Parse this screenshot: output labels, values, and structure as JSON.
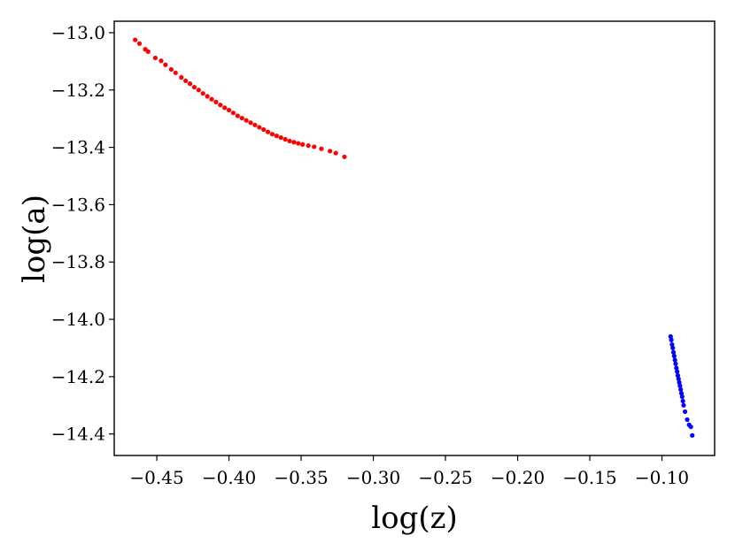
{
  "chart_data": {
    "type": "scatter",
    "title": "",
    "xlabel": "log(z)",
    "ylabel": "log(a)",
    "xlim": [
      -0.4795,
      -0.0635
    ],
    "ylim": [
      -14.475,
      -12.96
    ],
    "grid": false,
    "legend": "none",
    "xticks": [
      -0.45,
      -0.4,
      -0.35,
      -0.3,
      -0.25,
      -0.2,
      -0.15,
      -0.1
    ],
    "xtick_labels": [
      "−0.45",
      "−0.40",
      "−0.35",
      "−0.30",
      "−0.25",
      "−0.20",
      "−0.15",
      "−0.10"
    ],
    "yticks": [
      -13.0,
      -13.2,
      -13.4,
      -13.6,
      -13.8,
      -14.0,
      -14.2,
      -14.4
    ],
    "ytick_labels": [
      "−13.0",
      "−13.2",
      "−13.4",
      "−13.6",
      "−13.8",
      "−14.0",
      "−14.2",
      "−14.4"
    ],
    "series": [
      {
        "color": "#ff0000",
        "points": [
          [
            -0.465,
            -13.025
          ],
          [
            -0.462,
            -13.038
          ],
          [
            -0.458,
            -13.058
          ],
          [
            -0.456,
            -13.066
          ],
          [
            -0.451,
            -13.088
          ],
          [
            -0.447,
            -13.098
          ],
          [
            -0.444,
            -13.112
          ],
          [
            -0.44,
            -13.128
          ],
          [
            -0.437,
            -13.14
          ],
          [
            -0.433,
            -13.156
          ],
          [
            -0.43,
            -13.168
          ],
          [
            -0.427,
            -13.178
          ],
          [
            -0.424,
            -13.19
          ],
          [
            -0.421,
            -13.2
          ],
          [
            -0.418,
            -13.212
          ],
          [
            -0.415,
            -13.222
          ],
          [
            -0.412,
            -13.232
          ],
          [
            -0.409,
            -13.242
          ],
          [
            -0.406,
            -13.252
          ],
          [
            -0.403,
            -13.262
          ],
          [
            -0.4,
            -13.27
          ],
          [
            -0.397,
            -13.28
          ],
          [
            -0.394,
            -13.29
          ],
          [
            -0.391,
            -13.298
          ],
          [
            -0.388,
            -13.306
          ],
          [
            -0.385,
            -13.314
          ],
          [
            -0.382,
            -13.322
          ],
          [
            -0.379,
            -13.33
          ],
          [
            -0.376,
            -13.338
          ],
          [
            -0.373,
            -13.346
          ],
          [
            -0.37,
            -13.354
          ],
          [
            -0.367,
            -13.36
          ],
          [
            -0.364,
            -13.366
          ],
          [
            -0.361,
            -13.372
          ],
          [
            -0.358,
            -13.378
          ],
          [
            -0.355,
            -13.382
          ],
          [
            -0.352,
            -13.386
          ],
          [
            -0.349,
            -13.39
          ],
          [
            -0.345,
            -13.394
          ],
          [
            -0.341,
            -13.398
          ],
          [
            -0.336,
            -13.405
          ],
          [
            -0.33,
            -13.413
          ],
          [
            -0.326,
            -13.42
          ],
          [
            -0.32,
            -13.433
          ]
        ]
      },
      {
        "color": "#0000ff",
        "points": [
          [
            -0.094,
            -14.06
          ],
          [
            -0.0935,
            -14.072
          ],
          [
            -0.093,
            -14.088
          ],
          [
            -0.0925,
            -14.1
          ],
          [
            -0.092,
            -14.115
          ],
          [
            -0.0915,
            -14.128
          ],
          [
            -0.091,
            -14.142
          ],
          [
            -0.0905,
            -14.155
          ],
          [
            -0.09,
            -14.17
          ],
          [
            -0.0895,
            -14.182
          ],
          [
            -0.089,
            -14.196
          ],
          [
            -0.0885,
            -14.208
          ],
          [
            -0.088,
            -14.22
          ],
          [
            -0.0875,
            -14.232
          ],
          [
            -0.087,
            -14.245
          ],
          [
            -0.0865,
            -14.258
          ],
          [
            -0.086,
            -14.27
          ],
          [
            -0.0855,
            -14.285
          ],
          [
            -0.085,
            -14.3
          ],
          [
            -0.084,
            -14.322
          ],
          [
            -0.0825,
            -14.35
          ],
          [
            -0.0812,
            -14.368
          ],
          [
            -0.08,
            -14.375
          ],
          [
            -0.079,
            -14.405
          ]
        ]
      }
    ]
  }
}
